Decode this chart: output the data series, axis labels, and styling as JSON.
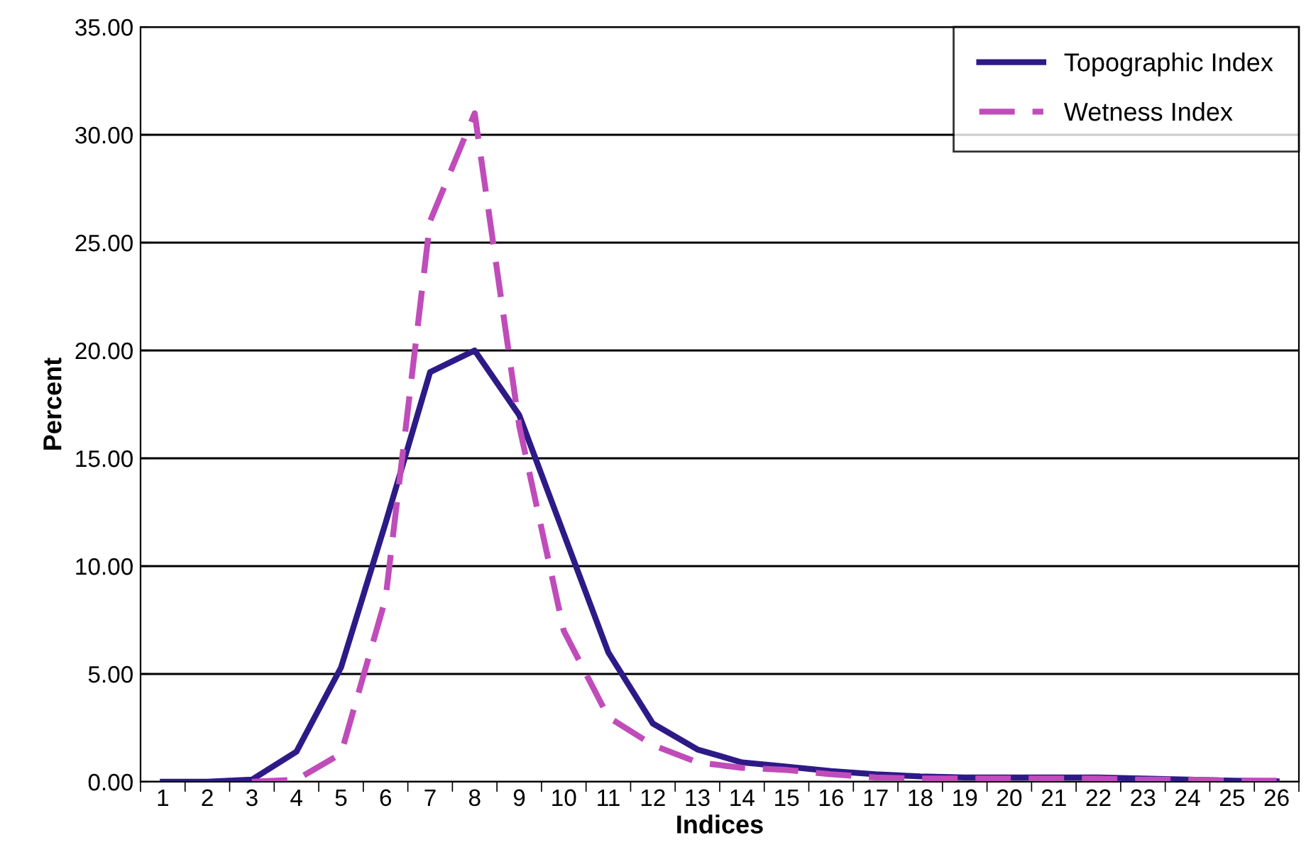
{
  "chart_data": {
    "type": "line",
    "xlabel": "Indices",
    "ylabel": "Percent",
    "categories": [
      "1",
      "2",
      "3",
      "4",
      "5",
      "6",
      "7",
      "8",
      "9",
      "10",
      "11",
      "12",
      "13",
      "14",
      "15",
      "16",
      "17",
      "18",
      "19",
      "20",
      "21",
      "22",
      "23",
      "24",
      "25",
      "26"
    ],
    "series": [
      {
        "name": "Topographic Index",
        "color": "#2e1a87",
        "line_style": "solid",
        "values": [
          0,
          0,
          0.1,
          1.4,
          5.3,
          12,
          19,
          20,
          17,
          11.5,
          6,
          2.7,
          1.5,
          0.9,
          0.7,
          0.5,
          0.35,
          0.25,
          0.2,
          0.2,
          0.2,
          0.2,
          0.15,
          0.1,
          0.05,
          0.02
        ]
      },
      {
        "name": "Wetness Index",
        "color": "#c04cba",
        "line_style": "dashed",
        "values": [
          null,
          null,
          0,
          0.1,
          1.3,
          8.5,
          26,
          31,
          16.5,
          7,
          3,
          1.7,
          0.9,
          0.65,
          0.55,
          0.35,
          0.2,
          0.15,
          0.15,
          0.15,
          0.15,
          0.15,
          0.1,
          0.1,
          0.05,
          0.05
        ]
      }
    ],
    "ylim": [
      0,
      35
    ],
    "yticks": [
      {
        "value": 0,
        "label": "0.00"
      },
      {
        "value": 5,
        "label": "5.00"
      },
      {
        "value": 10,
        "label": "10.00"
      },
      {
        "value": 15,
        "label": "15.00"
      },
      {
        "value": 20,
        "label": "20.00"
      },
      {
        "value": 25,
        "label": "25.00"
      },
      {
        "value": 30,
        "label": "30.00"
      },
      {
        "value": 35,
        "label": "35.00"
      }
    ],
    "grid": "y",
    "legend": "top right",
    "marker": "none"
  }
}
